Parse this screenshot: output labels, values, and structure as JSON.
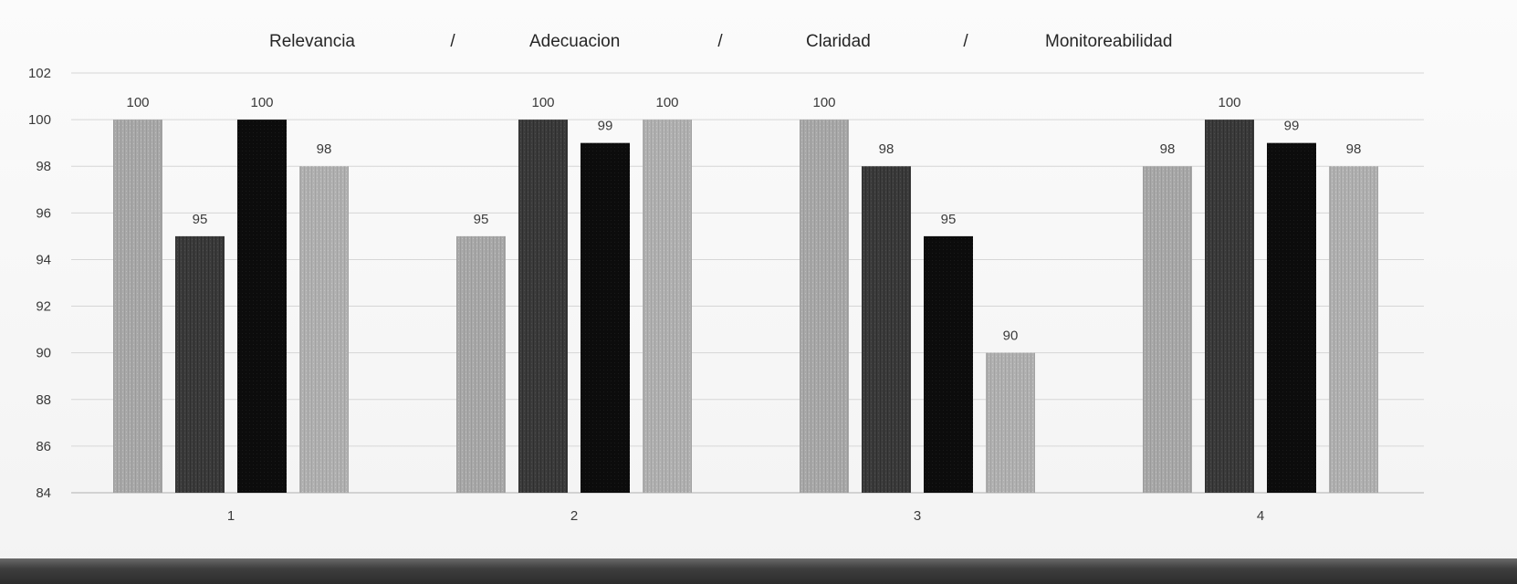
{
  "chart_data": {
    "type": "bar",
    "categories": [
      "1",
      "2",
      "3",
      "4"
    ],
    "series": [
      {
        "name": "Relevancia",
        "values": [
          100,
          95,
          100,
          98
        ],
        "color": "#a8a8a8"
      },
      {
        "name": "Adecuacion",
        "values": [
          95,
          100,
          98,
          100
        ],
        "color": "#3b3b3b"
      },
      {
        "name": "Claridad",
        "values": [
          100,
          99,
          95,
          99
        ],
        "color": "#0b0b0b"
      },
      {
        "name": "Monitoreabilidad",
        "values": [
          98,
          100,
          90,
          98
        ],
        "color": "#b0b0b0"
      }
    ],
    "legend_separator": "/",
    "ylim": [
      84,
      102
    ],
    "yticks": [
      84,
      86,
      88,
      90,
      92,
      94,
      96,
      98,
      100,
      102
    ],
    "grid": true,
    "legend_position": "top"
  }
}
